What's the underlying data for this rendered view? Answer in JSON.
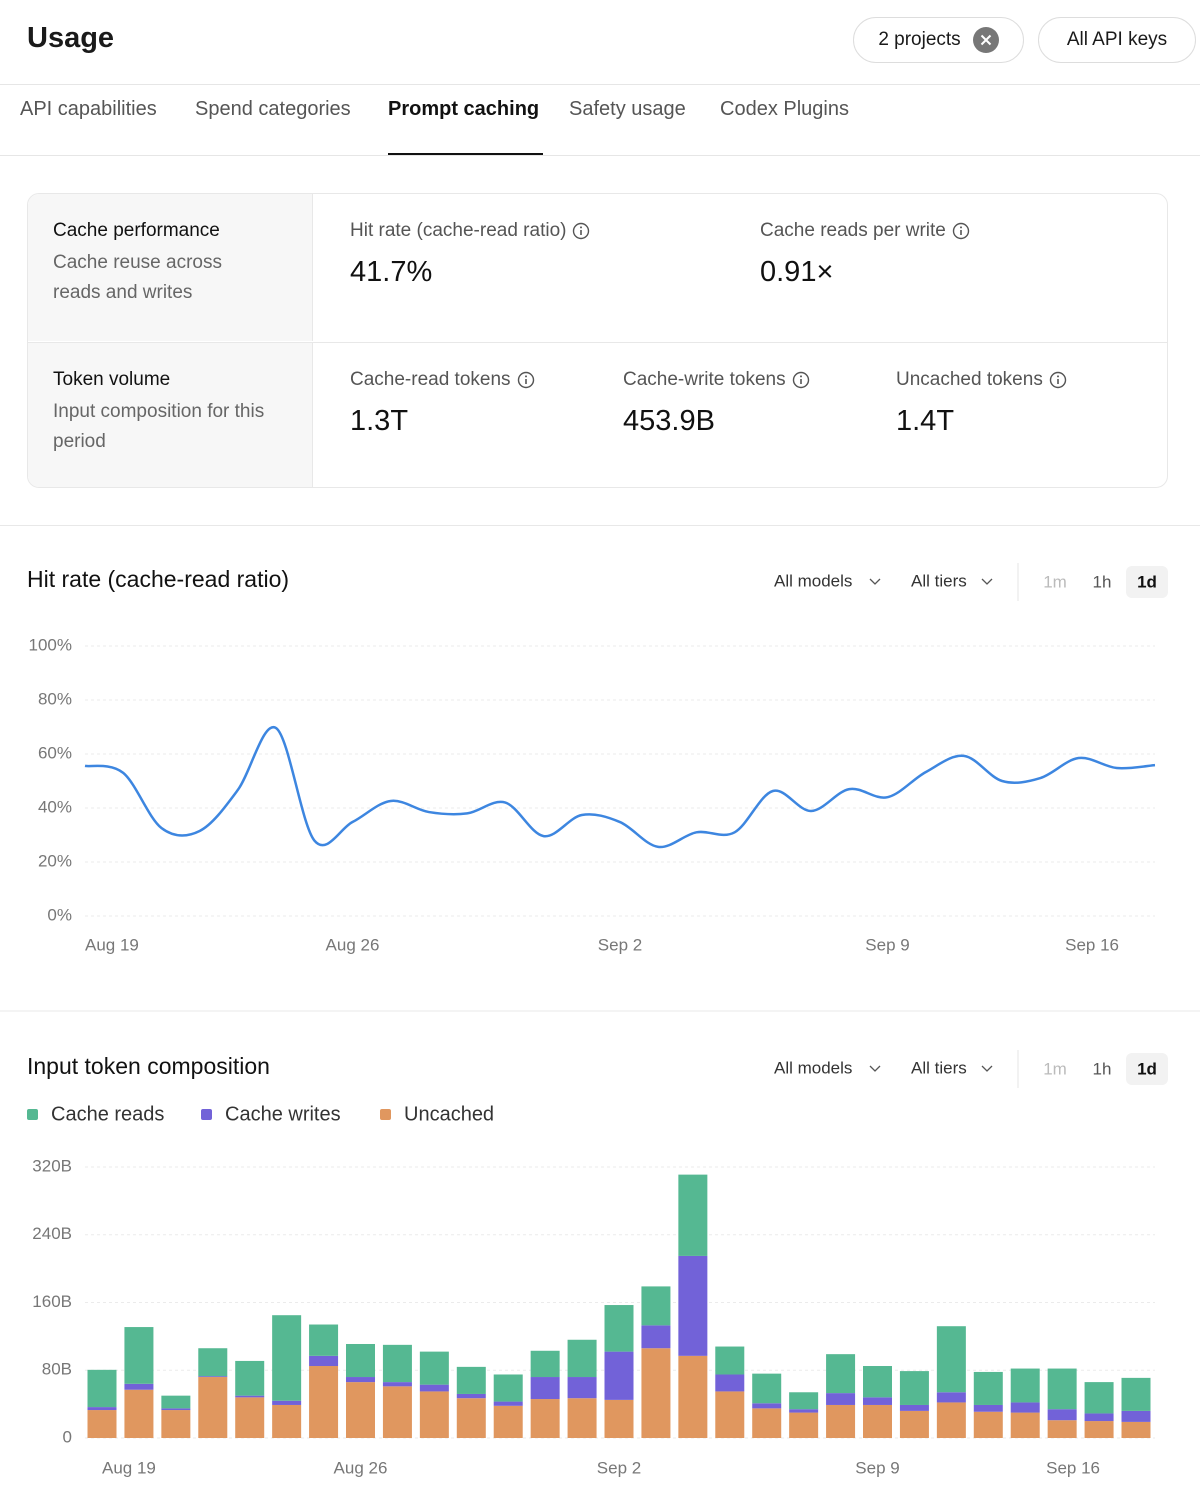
{
  "header": {
    "title": "Usage",
    "filters": [
      "2 projects",
      "All API keys"
    ]
  },
  "tabs": {
    "items": [
      "API capabilities",
      "Spend categories",
      "Prompt caching",
      "Safety usage",
      "Codex Plugins"
    ],
    "active": 2
  },
  "metrics": [
    {
      "title": "Cache performance",
      "description": "Cache reuse across reads and writes",
      "items": [
        {
          "label": "Hit rate (cache-read ratio)",
          "value": "41.7%"
        },
        {
          "label": "Cache reads per write",
          "value": "0.91×"
        }
      ]
    },
    {
      "title": "Token volume",
      "description": "Input composition for this period",
      "items": [
        {
          "label": "Cache-read tokens",
          "value": "1.3T"
        },
        {
          "label": "Cache-write tokens",
          "value": "453.9B"
        },
        {
          "label": "Uncached tokens",
          "value": "1.4T"
        }
      ]
    }
  ],
  "chart_data": [
    {
      "type": "line",
      "title": "Hit rate (cache-read ratio)",
      "controls": {
        "models": "All models",
        "tiers": "All tiers",
        "granularity": [
          "1m",
          "1h",
          "1d"
        ],
        "selected": 2
      },
      "categories": [
        "Aug 19",
        null,
        null,
        null,
        null,
        null,
        null,
        "Aug 26",
        null,
        null,
        null,
        null,
        null,
        null,
        "Sep 2",
        null,
        null,
        null,
        null,
        null,
        null,
        "Sep 9",
        null,
        null,
        null,
        null,
        null,
        null,
        "Sep 16"
      ],
      "series": [
        {
          "name": "Hit rate",
          "color": "#3d86e0",
          "values": [
            55.6,
            53,
            32.6,
            31.5,
            46.7,
            69.6,
            28,
            34.8,
            42.6,
            38.5,
            38,
            42,
            29.6,
            37.4,
            34.8,
            25.6,
            31,
            31,
            46.3,
            38.9,
            47,
            44,
            53.3,
            59.3,
            50,
            51.1,
            58.5,
            54.8,
            55.9
          ]
        }
      ],
      "ylim": [
        0,
        100
      ],
      "yticks": [
        {
          "value": 0,
          "label": "0%"
        },
        {
          "value": 20,
          "label": "20%"
        },
        {
          "value": 40,
          "label": "40%"
        },
        {
          "value": 60,
          "label": "60%"
        },
        {
          "value": 80,
          "label": "80%"
        },
        {
          "value": 100,
          "label": "100%"
        }
      ],
      "grid": true
    },
    {
      "type": "stacked_bar",
      "title": "Input token composition",
      "controls": {
        "models": "All models",
        "tiers": "All tiers",
        "granularity": [
          "1m",
          "1h",
          "1d"
        ],
        "selected": 2
      },
      "categories": [
        "Aug 19",
        null,
        null,
        null,
        null,
        null,
        null,
        "Aug 26",
        null,
        null,
        null,
        null,
        null,
        null,
        "Sep 2",
        null,
        null,
        null,
        null,
        null,
        null,
        "Sep 9",
        null,
        null,
        null,
        null,
        null,
        null,
        "Sep 16"
      ],
      "series": [
        {
          "name": "Cache reads",
          "color": "#55b892",
          "values": [
            44,
            67,
            15,
            33,
            41,
            101,
            37,
            39,
            44,
            39,
            32,
            32,
            31,
            44,
            55,
            46,
            96,
            33,
            35,
            20,
            46,
            37,
            40,
            78,
            39,
            40,
            48,
            37,
            39
          ]
        },
        {
          "name": "Cache writes",
          "color": "#7262d8",
          "values": [
            3.5,
            7,
            2,
            1,
            2,
            5,
            12,
            6,
            5,
            8,
            5,
            5,
            26,
            25,
            57,
            27,
            118,
            20,
            6,
            4,
            14,
            9,
            7,
            12,
            8,
            12,
            13,
            9,
            13
          ]
        },
        {
          "name": "Uncached",
          "color": "#e0975f",
          "values": [
            33,
            57,
            33,
            72,
            48,
            39,
            85,
            66,
            61,
            55,
            47,
            38,
            46,
            47,
            45,
            106,
            97,
            55,
            35,
            30,
            39,
            39,
            32,
            42,
            31,
            30,
            21,
            20,
            19
          ]
        }
      ],
      "ylim": [
        0,
        320
      ],
      "yticks": [
        0,
        {
          "value": 80,
          "label": "80B"
        },
        {
          "value": 160,
          "label": "160B"
        },
        {
          "value": 240,
          "label": "240B"
        },
        {
          "value": 320,
          "label": "320B"
        }
      ],
      "grid": true,
      "legend": "top-left"
    }
  ]
}
